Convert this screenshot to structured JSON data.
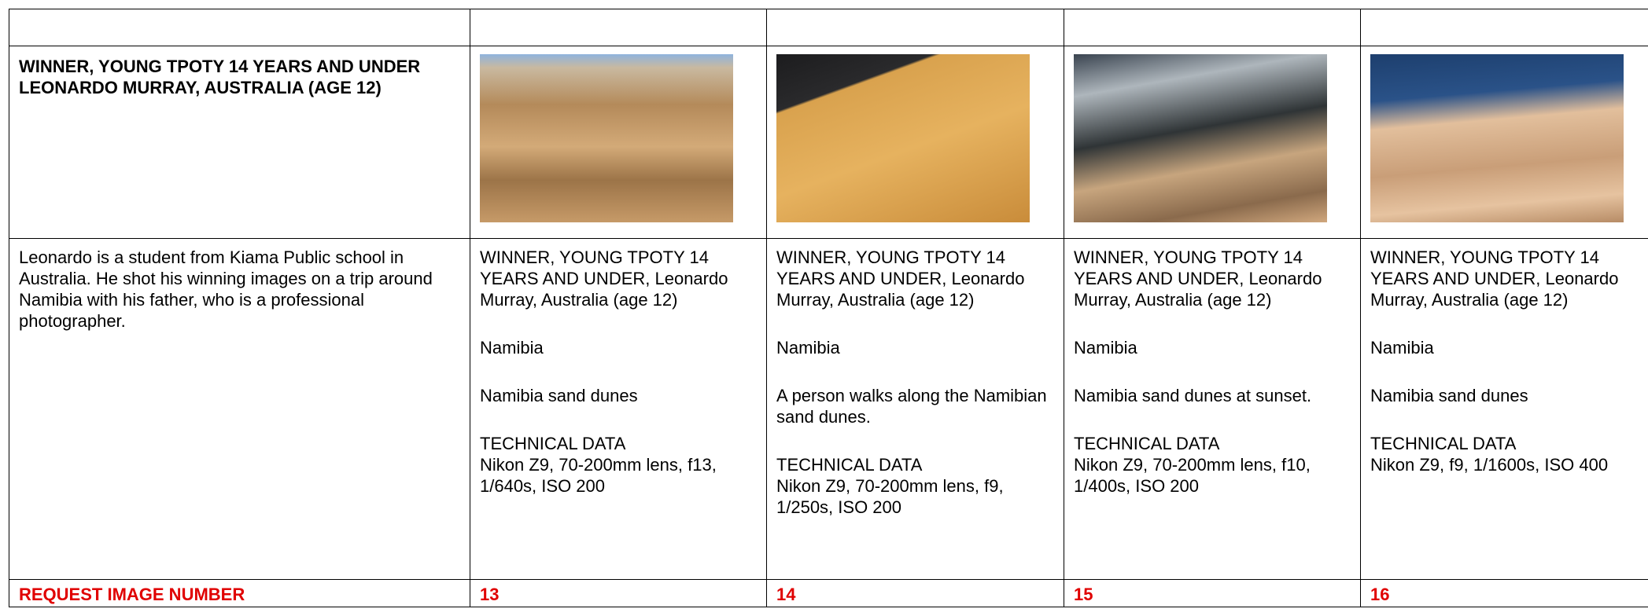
{
  "heading": "WINNER, YOUNG TPOTY 14 YEARS AND UNDER LEONARDO MURRAY, AUSTRALIA (AGE 12)",
  "description": "Leonardo is a student from Kiama Public school in Australia. He shot his winning images on a trip around Namibia with his father, who is a professional photographer.",
  "request_label": "REQUEST IMAGE NUMBER",
  "photos": [
    {
      "title": "WINNER, YOUNG TPOTY 14 YEARS AND UNDER, Leonardo Murray, Australia (age 12)",
      "location": "Namibia",
      "caption": "Namibia sand dunes",
      "tech_heading": "TECHNICAL DATA",
      "tech": "Nikon Z9, 70-200mm lens, f13, 1/640s, ISO 200",
      "number": "13"
    },
    {
      "title": "WINNER, YOUNG TPOTY 14 YEARS AND UNDER, Leonardo Murray, Australia (age 12)",
      "location": "Namibia",
      "caption": "A person walks along the Namibian sand dunes.",
      "tech_heading": "TECHNICAL DATA",
      "tech": "Nikon Z9, 70-200mm lens, f9, 1/250s, ISO 200",
      "number": "14"
    },
    {
      "title": "WINNER, YOUNG TPOTY 14 YEARS AND UNDER, Leonardo Murray, Australia (age 12)",
      "location": "Namibia",
      "caption": "Namibia sand dunes at sunset.",
      "tech_heading": "TECHNICAL DATA",
      "tech": "Nikon Z9, 70-200mm lens, f10, 1/400s, ISO 200",
      "number": "15"
    },
    {
      "title": "WINNER, YOUNG TPOTY 14 YEARS AND UNDER, Leonardo Murray, Australia (age 12)",
      "location": "Namibia",
      "caption": "Namibia sand dunes",
      "tech_heading": "TECHNICAL DATA",
      "tech": "Nikon Z9, f9, 1/1600s, ISO 400",
      "number": "16"
    }
  ]
}
